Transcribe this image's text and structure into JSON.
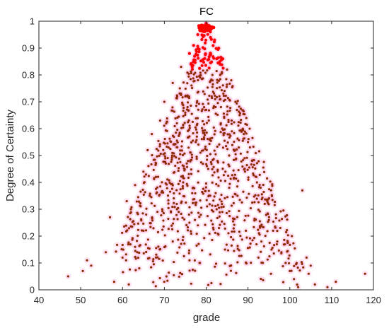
{
  "chart_data": {
    "type": "scatter",
    "title": "FC",
    "xlabel": "grade",
    "ylabel": "Degree of Certainty",
    "xlim": [
      40,
      120
    ],
    "ylim": [
      0,
      1
    ],
    "xticks": [
      "40",
      "50",
      "60",
      "70",
      "80",
      "90",
      "100",
      "110",
      "120"
    ],
    "yticks": [
      "0",
      "0.1",
      "0.2",
      "0.3",
      "0.4",
      "0.5",
      "0.6",
      "0.7",
      "0.8",
      "0.9",
      "1"
    ],
    "grid": false,
    "distribution": {
      "shape": "triangular",
      "peak_x": 80,
      "peak_y": 1,
      "left_x": 58,
      "right_x": 103,
      "approx_points": 1000
    },
    "series": [
      {
        "marker_color": "#8B2B00",
        "highlight_color": "#ff0000",
        "halo_color": "#ffb0e0",
        "points": [
          [
            47,
            0.05
          ],
          [
            50.5,
            0.07
          ],
          [
            51.5,
            0.11
          ],
          [
            52.5,
            0.09
          ],
          [
            56,
            0.14
          ],
          [
            57,
            0.27
          ],
          [
            58,
            0.03
          ],
          [
            60,
            0.12
          ],
          [
            61,
            0.33
          ],
          [
            62,
            0.3
          ],
          [
            61.5,
            0.02
          ],
          [
            63,
            0.16
          ],
          [
            63,
            0.39
          ],
          [
            64,
            0.08
          ],
          [
            65,
            0.44
          ],
          [
            65,
            0.22
          ],
          [
            66,
            0.52
          ],
          [
            66.5,
            0.35
          ],
          [
            67,
            0.58
          ],
          [
            68,
            0.12
          ],
          [
            68,
            0.47
          ],
          [
            69,
            0.63
          ],
          [
            69.5,
            0.3
          ],
          [
            70,
            0.7
          ],
          [
            70.5,
            0.05
          ],
          [
            71,
            0.53
          ],
          [
            72,
            0.77
          ],
          [
            72,
            0.18
          ],
          [
            73,
            0.62
          ],
          [
            74,
            0.83
          ],
          [
            74.5,
            0.4
          ],
          [
            75,
            0.72
          ],
          [
            76,
            0.88
          ],
          [
            76,
            0.25
          ],
          [
            77,
            0.91
          ],
          [
            77.5,
            0.55
          ],
          [
            78,
            0.95
          ],
          [
            78.5,
            0.1
          ],
          [
            79,
            0.97
          ],
          [
            79.5,
            0.68
          ],
          [
            80,
            0.99
          ],
          [
            80.5,
            0.45
          ],
          [
            81,
            0.96
          ],
          [
            81.5,
            0.8
          ],
          [
            82,
            0.93
          ],
          [
            82.5,
            0.3
          ],
          [
            83,
            0.9
          ],
          [
            83.5,
            0.62
          ],
          [
            84,
            0.86
          ],
          [
            84.5,
            0.15
          ],
          [
            85,
            0.82
          ],
          [
            85.5,
            0.5
          ],
          [
            86,
            0.78
          ],
          [
            87,
            0.7
          ],
          [
            87.5,
            0.35
          ],
          [
            88,
            0.65
          ],
          [
            89,
            0.58
          ],
          [
            89.5,
            0.22
          ],
          [
            90,
            0.55
          ],
          [
            91,
            0.48
          ],
          [
            92,
            0.42
          ],
          [
            92.5,
            0.12
          ],
          [
            93,
            0.38
          ],
          [
            94,
            0.32
          ],
          [
            95,
            0.26
          ],
          [
            95.5,
            0.06
          ],
          [
            96,
            0.22
          ],
          [
            97,
            0.18
          ],
          [
            98,
            0.14
          ],
          [
            99,
            0.1
          ],
          [
            100,
            0.07
          ],
          [
            100.5,
            0.2
          ],
          [
            101,
            0.04
          ],
          [
            102,
            0.01
          ],
          [
            103,
            0.37
          ],
          [
            104,
            0.12
          ],
          [
            104.5,
            0.06
          ],
          [
            105,
            0.09
          ],
          [
            106,
            0.02
          ],
          [
            109,
            0.01
          ],
          [
            111,
            0.03
          ],
          [
            118,
            0.06
          ]
        ]
      }
    ]
  }
}
